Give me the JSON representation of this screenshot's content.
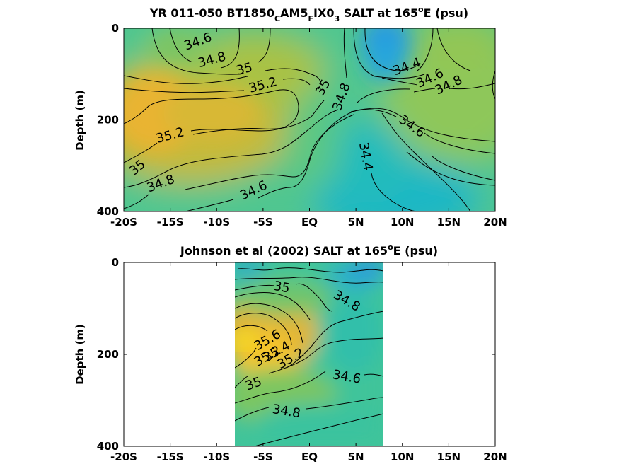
{
  "chart_data": [
    {
      "type": "contour",
      "title": {
        "prefix": "YR 011-050 BT1850",
        "sub1": "C",
        "mid1": "AM5",
        "sub2": "F",
        "mid2": "IX0",
        "sub3": "3",
        "suffix": " SALT at 165",
        "sup": "o",
        "end": "E (psu)"
      },
      "ylabel": "Depth (m)",
      "x_ticks": [
        "-20S",
        "-15S",
        "-10S",
        "-5S",
        "EQ",
        "5N",
        "10N",
        "15N",
        "20N"
      ],
      "x_values": [
        -20,
        -15,
        -10,
        -5,
        0,
        5,
        10,
        15,
        20
      ],
      "y_ticks": [
        "0",
        "200",
        "400"
      ],
      "y_values": [
        0,
        200,
        400
      ],
      "xlim": [
        -20,
        20
      ],
      "ylim": [
        0,
        400
      ],
      "y_reversed": true,
      "colorscale": [
        "#2a8fe6",
        "#1fb0d4",
        "#22c3b0",
        "#55c88a",
        "#8fc75a",
        "#c7bb38",
        "#f2b132",
        "#f6e21c"
      ],
      "contour_labels": [
        {
          "text": "34.6",
          "lat": -12,
          "depth": 30
        },
        {
          "text": "34.8",
          "lat": -10.5,
          "depth": 70
        },
        {
          "text": "35",
          "lat": -7,
          "depth": 90
        },
        {
          "text": "35.2",
          "lat": -5,
          "depth": 125
        },
        {
          "text": "35.2",
          "lat": -15,
          "depth": 235
        },
        {
          "text": "35",
          "lat": -18.5,
          "depth": 305
        },
        {
          "text": "34.8",
          "lat": -16,
          "depth": 340
        },
        {
          "text": "34.6",
          "lat": -6,
          "depth": 355
        },
        {
          "text": "35",
          "lat": 1.5,
          "depth": 130
        },
        {
          "text": "34.8",
          "lat": 3.5,
          "depth": 150
        },
        {
          "text": "34.4",
          "lat": 10.5,
          "depth": 85
        },
        {
          "text": "34.6",
          "lat": 13,
          "depth": 110
        },
        {
          "text": "34.8",
          "lat": 15,
          "depth": 125
        },
        {
          "text": "34.6",
          "lat": 11,
          "depth": 215
        },
        {
          "text": "34.4",
          "lat": 6,
          "depth": 280
        }
      ]
    },
    {
      "type": "contour",
      "title": {
        "prefix": "Johnson et al (2002) SALT at 165",
        "sup": "o",
        "end": "E (psu)"
      },
      "ylabel": "Depth (m)",
      "x_ticks": [
        "-20S",
        "-15S",
        "-10S",
        "-5S",
        "EQ",
        "5N",
        "10N",
        "15N",
        "20N"
      ],
      "x_values": [
        -20,
        -15,
        -10,
        -5,
        0,
        5,
        10,
        15,
        20
      ],
      "y_ticks": [
        "0",
        "200",
        "400"
      ],
      "y_values": [
        0,
        200,
        400
      ],
      "xlim": [
        -20,
        20
      ],
      "ylim": [
        0,
        400
      ],
      "y_reversed": true,
      "data_extent_lat": [
        -8,
        8
      ],
      "contour_labels": [
        {
          "text": "35",
          "lat": -3,
          "depth": 55
        },
        {
          "text": "34.8",
          "lat": 4,
          "depth": 85
        },
        {
          "text": "35.6",
          "lat": -4.5,
          "depth": 170
        },
        {
          "text": "35.4",
          "lat": -3.5,
          "depth": 195
        },
        {
          "text": "35.2",
          "lat": -2,
          "depth": 210
        },
        {
          "text": "35.2",
          "lat": -4.5,
          "depth": 205
        },
        {
          "text": "34.6",
          "lat": 4,
          "depth": 250
        },
        {
          "text": "35",
          "lat": -6,
          "depth": 265
        },
        {
          "text": "34.8",
          "lat": -2.5,
          "depth": 325
        }
      ]
    }
  ]
}
